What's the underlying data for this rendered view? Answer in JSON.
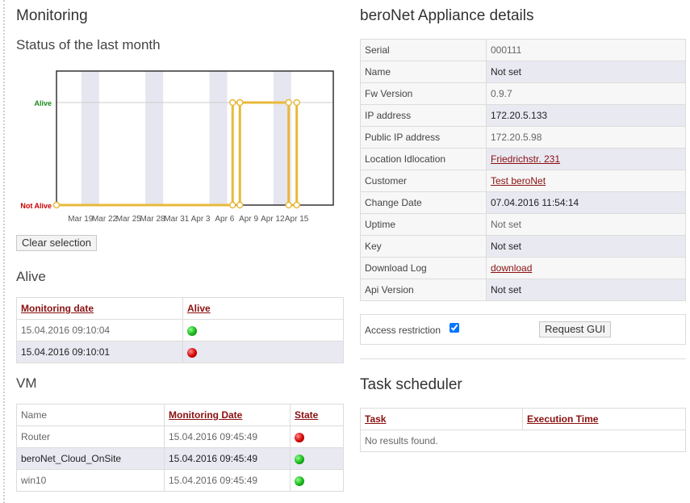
{
  "monitoring": {
    "title": "Monitoring",
    "chart_title": "Status of the last month",
    "clear_selection_label": "Clear selection"
  },
  "chart_data": {
    "type": "line",
    "title": "",
    "xlabel": "",
    "ylabel": "",
    "y_categories": [
      "Not Alive",
      "Alive"
    ],
    "x_tick_labels": [
      "Mar 19",
      "Mar 22",
      "Mar 25",
      "Mar 28",
      "Mar 31",
      "Apr 3",
      "Apr 6",
      "Apr 9",
      "Apr 12",
      "Apr 15"
    ],
    "series": [
      {
        "color": "#e8b93a",
        "points": [
          {
            "x": "Mar 16",
            "y": 0
          },
          {
            "x": "Apr 7",
            "y": 0
          },
          {
            "x": "Apr 7",
            "y": 1
          },
          {
            "x": "Apr 8",
            "y": 1
          },
          {
            "x": "Apr 8",
            "y": 0
          },
          {
            "x": "Apr 8",
            "y": 1
          },
          {
            "x": "Apr 14",
            "y": 1
          },
          {
            "x": "Apr 14",
            "y": 0
          },
          {
            "x": "Apr 15",
            "y": 0
          },
          {
            "x": "Apr 15",
            "y": 1
          }
        ]
      }
    ],
    "colors": {
      "alive_label": "#1a8a1a",
      "not_alive_label": "#cc0000",
      "weekend_band": "#e6e6f0"
    },
    "grid": true
  },
  "alive": {
    "title": "Alive",
    "headers": [
      "Monitoring date",
      "Alive"
    ],
    "rows": [
      {
        "date": "15.04.2016 09:10:04",
        "status": "green"
      },
      {
        "date": "15.04.2016 09:10:01",
        "status": "red"
      }
    ]
  },
  "vm": {
    "title": "VM",
    "headers": [
      "Name",
      "Monitoring Date",
      "State"
    ],
    "rows": [
      {
        "name": "Router",
        "date": "15.04.2016 09:45:49",
        "state": "red"
      },
      {
        "name": "beroNet_Cloud_OnSite",
        "date": "15.04.2016 09:45:49",
        "state": "green"
      },
      {
        "name": "win10",
        "date": "15.04.2016 09:45:49",
        "state": "green"
      }
    ]
  },
  "appliance": {
    "title": "beroNet Appliance details",
    "rows": [
      {
        "key": "Serial",
        "value": "000111"
      },
      {
        "key": "Name",
        "value": "Not set"
      },
      {
        "key": "Fw Version",
        "value": "0.9.7"
      },
      {
        "key": "IP address",
        "value": "172.20.5.133"
      },
      {
        "key": "Public IP address",
        "value": "172.20.5.98"
      },
      {
        "key": "Location Idlocation",
        "value": "Friedrichstr. 231"
      },
      {
        "key": "Customer",
        "value": "Test beroNet"
      },
      {
        "key": "Change Date",
        "value": "07.04.2016 11:54:14"
      },
      {
        "key": "Uptime",
        "value": "Not set"
      },
      {
        "key": "Key",
        "value": "Not set"
      },
      {
        "key": "Download Log",
        "value": "download"
      },
      {
        "key": "Api Version",
        "value": "Not set"
      }
    ],
    "access_label": "Access restriction",
    "access_checked": true,
    "request_gui_label": "Request GUI"
  },
  "tasks": {
    "title": "Task scheduler",
    "headers": [
      "Task",
      "Execution Time"
    ],
    "empty_text": "No results found."
  }
}
